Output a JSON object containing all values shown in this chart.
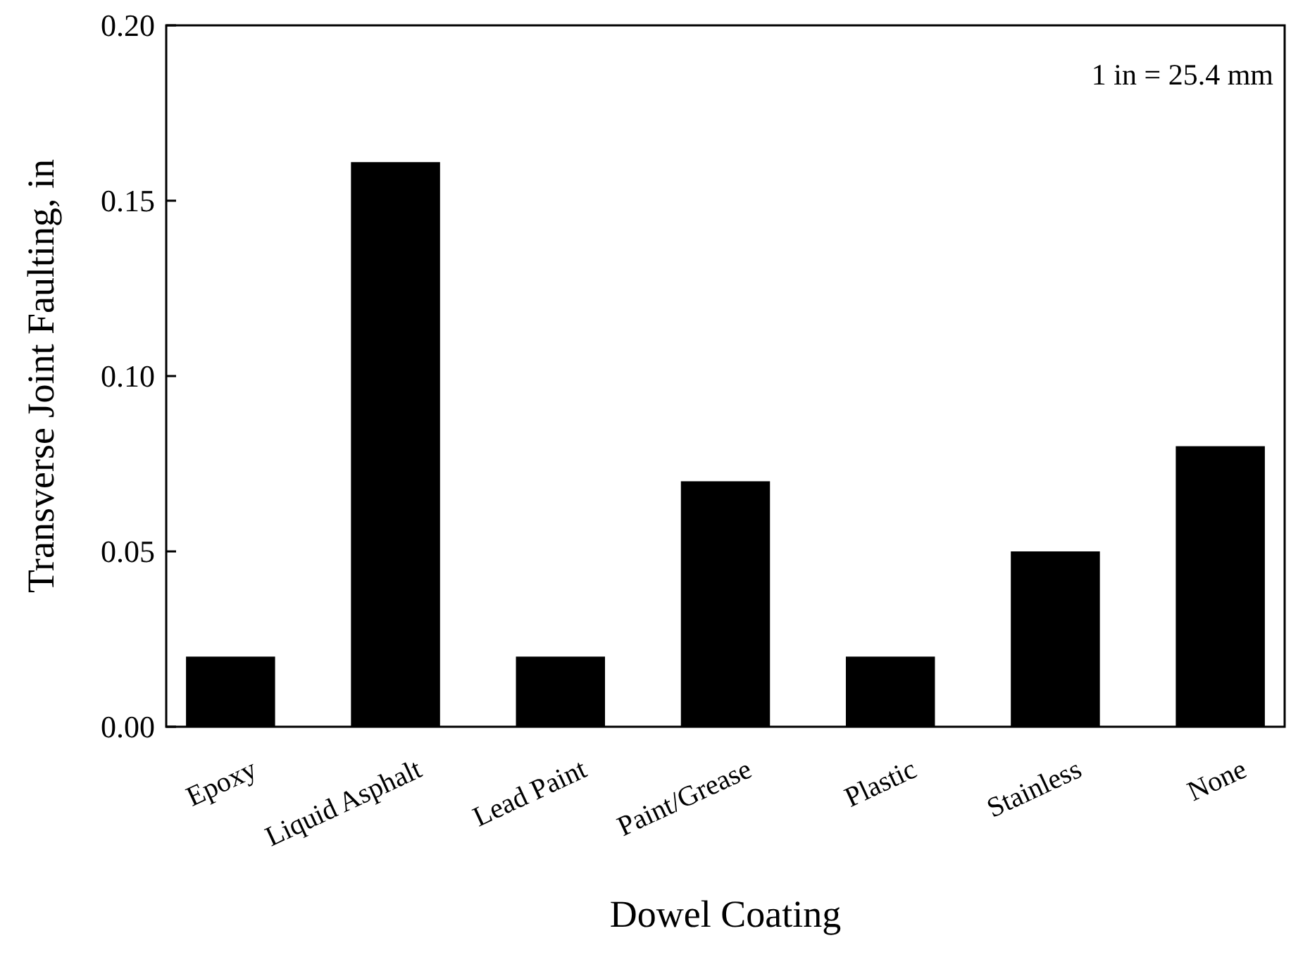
{
  "chart_data": {
    "type": "bar",
    "xlabel": "Dowel Coating",
    "ylabel": "Transverse Joint Faulting, in",
    "categories": [
      "Epoxy",
      "Liquid Asphalt",
      "Lead Paint",
      "Paint/Grease",
      "Plastic",
      "Stainless",
      "None"
    ],
    "values": [
      0.02,
      0.161,
      0.02,
      0.07,
      0.02,
      0.05,
      0.08
    ],
    "color": "#000000",
    "ylim": [
      0,
      0.2
    ],
    "yticks": [
      {
        "value": 0,
        "label": "0.00"
      },
      {
        "value": 0.05,
        "label": "0.05"
      },
      {
        "value": 0.1,
        "label": "0.10"
      },
      {
        "value": 0.15,
        "label": "0.15"
      },
      {
        "value": 0.2,
        "label": "0.20"
      }
    ],
    "annotations": [
      "1 in = 25.4 mm"
    ]
  }
}
